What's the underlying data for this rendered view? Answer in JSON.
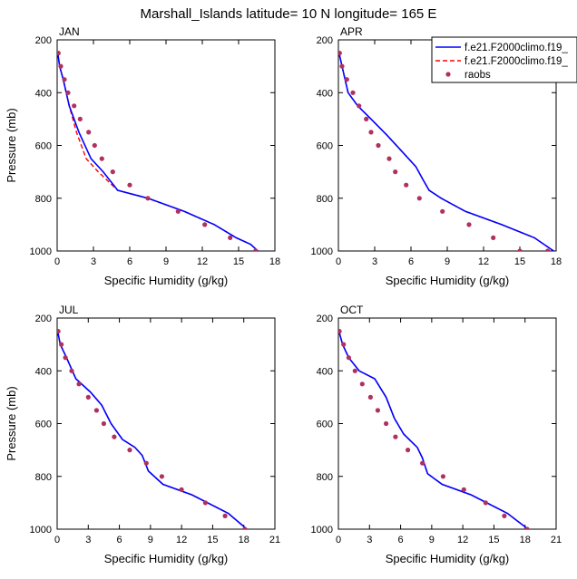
{
  "title": "Marshall_Islands  latitude= 10 N longitude= 165 E",
  "legend": {
    "entries": [
      {
        "label": "f.e21.F2000climo.f19_",
        "color": "#0000ff",
        "style": "solid"
      },
      {
        "label": "f.e21.F2000climo.f19_",
        "color": "#ff0000",
        "style": "dashed"
      },
      {
        "label": "raobs",
        "color": "#b03060",
        "style": "marker"
      }
    ]
  },
  "chart_data": [
    {
      "type": "line",
      "panel_label": "JAN",
      "xlabel": "Specific Humidity (g/kg)",
      "ylabel": "Pressure (mb)",
      "xlim": [
        0,
        18
      ],
      "xticks": [
        0,
        3,
        6,
        9,
        12,
        15,
        18
      ],
      "ylim": [
        1000,
        200
      ],
      "yticks": [
        200,
        400,
        600,
        800,
        1000
      ],
      "series": [
        {
          "name": "f.e21.F2000climo.f19_",
          "color": "#0000ff",
          "x": [
            0.05,
            0.2,
            0.5,
            1.0,
            1.8,
            2.8,
            3.8,
            5.0,
            7.5,
            10.5,
            13.0,
            14.8,
            16.0,
            16.6
          ],
          "y": [
            250,
            300,
            350,
            450,
            550,
            650,
            700,
            770,
            800,
            850,
            900,
            950,
            975,
            1000
          ]
        },
        {
          "name": "f.e21.F2000climo.f19_",
          "color": "#ff0000",
          "x": [
            0.05,
            0.2,
            0.5,
            1.0,
            1.6,
            2.4,
            3.4,
            5.0,
            7.5,
            10.5,
            13.0,
            14.8,
            16.0,
            16.6
          ],
          "y": [
            250,
            300,
            350,
            450,
            550,
            650,
            700,
            770,
            800,
            850,
            900,
            950,
            975,
            1000
          ]
        },
        {
          "name": "raobs",
          "color": "#b03060",
          "x": [
            0.1,
            0.3,
            0.6,
            0.9,
            1.4,
            1.9,
            2.6,
            3.1,
            3.7,
            4.6,
            6.0,
            7.5,
            10.0,
            12.2,
            14.3,
            16.4
          ],
          "y": [
            250,
            300,
            350,
            400,
            450,
            500,
            550,
            600,
            650,
            700,
            750,
            800,
            850,
            900,
            950,
            1000
          ]
        }
      ]
    },
    {
      "type": "line",
      "panel_label": "APR",
      "xlabel": "Specific Humidity (g/kg)",
      "ylabel": "",
      "xlim": [
        0,
        18
      ],
      "xticks": [
        0,
        3,
        6,
        9,
        12,
        15,
        18
      ],
      "ylim": [
        1000,
        200
      ],
      "yticks": [
        200,
        400,
        600,
        800,
        1000
      ],
      "series": [
        {
          "name": "f.e21.F2000climo.f19_",
          "color": "#0000ff",
          "x": [
            0.05,
            0.3,
            0.8,
            1.6,
            2.7,
            4.0,
            5.2,
            6.4,
            7.0,
            7.5,
            8.5,
            10.5,
            13.5,
            16.2,
            17.8
          ],
          "y": [
            250,
            300,
            400,
            450,
            500,
            560,
            620,
            680,
            730,
            770,
            800,
            850,
            900,
            950,
            1000
          ]
        },
        {
          "name": "f.e21.F2000climo.f19_",
          "color": "#ff0000",
          "x": [
            0.05,
            0.3,
            0.8,
            1.6,
            2.7,
            4.0,
            5.2,
            6.4,
            7.0,
            7.5,
            8.5,
            10.5,
            13.5,
            16.2,
            17.8
          ],
          "y": [
            250,
            300,
            400,
            450,
            500,
            560,
            620,
            680,
            730,
            770,
            800,
            850,
            900,
            950,
            1000
          ]
        },
        {
          "name": "raobs",
          "color": "#b03060",
          "x": [
            0.1,
            0.3,
            0.7,
            1.2,
            1.7,
            2.3,
            2.7,
            3.3,
            4.2,
            4.7,
            5.6,
            6.7,
            8.6,
            10.8,
            12.8,
            15.0,
            17.3
          ],
          "y": [
            250,
            300,
            350,
            400,
            450,
            500,
            550,
            600,
            650,
            700,
            750,
            800,
            850,
            900,
            950,
            1000,
            1000
          ]
        }
      ]
    },
    {
      "type": "line",
      "panel_label": "JUL",
      "xlabel": "Specific Humidity (g/kg)",
      "ylabel": "Pressure (mb)",
      "xlim": [
        0,
        21
      ],
      "xticks": [
        0,
        3,
        6,
        9,
        12,
        15,
        18,
        21
      ],
      "ylim": [
        1000,
        200
      ],
      "yticks": [
        200,
        400,
        600,
        800,
        1000
      ],
      "series": [
        {
          "name": "f.e21.F2000climo.f19_",
          "color": "#0000ff",
          "x": [
            0.05,
            0.3,
            0.9,
            1.8,
            3.2,
            4.3,
            5.2,
            6.3,
            7.5,
            8.2,
            8.8,
            10.2,
            13.0,
            16.5,
            18.3
          ],
          "y": [
            250,
            300,
            350,
            430,
            480,
            530,
            600,
            660,
            690,
            720,
            780,
            830,
            870,
            940,
            1000
          ]
        },
        {
          "name": "f.e21.F2000climo.f19_",
          "color": "#ff0000",
          "x": [
            0.05,
            0.3,
            0.9,
            1.8,
            3.2,
            4.3,
            5.2,
            6.3,
            7.5,
            8.2,
            8.8,
            10.2,
            13.0,
            16.5,
            18.3
          ],
          "y": [
            250,
            300,
            350,
            430,
            480,
            530,
            600,
            660,
            690,
            720,
            780,
            830,
            870,
            940,
            1000
          ]
        },
        {
          "name": "raobs",
          "color": "#b03060",
          "x": [
            0.1,
            0.4,
            0.8,
            1.4,
            2.1,
            3.0,
            3.8,
            4.5,
            5.5,
            7.0,
            8.6,
            10.1,
            12.0,
            14.3,
            16.2,
            18.1
          ],
          "y": [
            250,
            300,
            350,
            400,
            450,
            500,
            550,
            600,
            650,
            700,
            750,
            800,
            850,
            900,
            950,
            1000
          ]
        }
      ]
    },
    {
      "type": "line",
      "panel_label": "OCT",
      "xlabel": "Specific Humidity (g/kg)",
      "ylabel": "",
      "xlim": [
        0,
        21
      ],
      "xticks": [
        0,
        3,
        6,
        9,
        12,
        15,
        18,
        21
      ],
      "ylim": [
        1000,
        200
      ],
      "yticks": [
        200,
        400,
        600,
        800,
        1000
      ],
      "series": [
        {
          "name": "f.e21.F2000climo.f19_",
          "color": "#0000ff",
          "x": [
            0.05,
            0.4,
            1.0,
            2.0,
            3.5,
            4.6,
            5.4,
            6.3,
            7.6,
            8.1,
            8.6,
            10.0,
            12.8,
            16.3,
            18.3
          ],
          "y": [
            250,
            300,
            350,
            400,
            430,
            500,
            580,
            640,
            690,
            730,
            790,
            830,
            870,
            940,
            1000
          ]
        },
        {
          "name": "f.e21.F2000climo.f19_",
          "color": "#ff0000",
          "x": [
            0.05,
            0.4,
            1.0,
            2.0,
            3.5,
            4.6,
            5.4,
            6.3,
            7.6,
            8.1,
            8.6,
            10.0,
            12.8,
            16.3,
            18.3
          ],
          "y": [
            250,
            300,
            350,
            400,
            430,
            500,
            580,
            640,
            690,
            730,
            790,
            830,
            870,
            940,
            1000
          ]
        },
        {
          "name": "raobs",
          "color": "#b03060",
          "x": [
            0.1,
            0.5,
            1.0,
            1.6,
            2.3,
            3.1,
            3.8,
            4.6,
            5.5,
            6.7,
            8.1,
            10.1,
            12.1,
            14.2,
            16.0,
            18.2
          ],
          "y": [
            250,
            300,
            350,
            400,
            450,
            500,
            550,
            600,
            650,
            700,
            750,
            800,
            850,
            900,
            950,
            1000
          ]
        }
      ]
    }
  ]
}
